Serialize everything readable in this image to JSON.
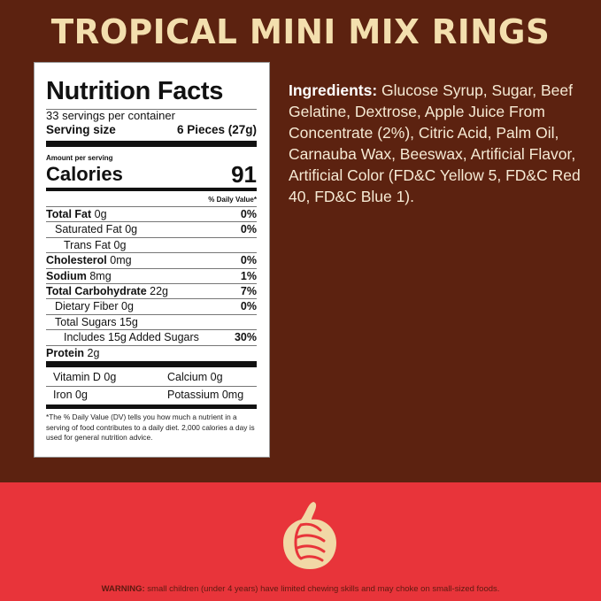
{
  "title": "TROPICAL MINI MIX RINGS",
  "nutrition": {
    "heading": "Nutrition Facts",
    "servings": "33 servings per container",
    "serving_size_label": "Serving size",
    "serving_size_value": "6 Pieces (27g)",
    "amount_per_serving": "Amount per serving",
    "calories_label": "Calories",
    "calories_value": "91",
    "dv_header": "% Daily Value*",
    "rows": [
      {
        "label": "Total Fat",
        "value": "0g",
        "dv": "0%"
      },
      {
        "label": "Saturated Fat",
        "value": "0g",
        "dv": "0%"
      },
      {
        "label": "Trans Fat",
        "value": "0g",
        "dv": ""
      },
      {
        "label": "Cholesterol",
        "value": "0mg",
        "dv": "0%"
      },
      {
        "label": "Sodium",
        "value": "8mg",
        "dv": "1%"
      },
      {
        "label": "Total Carbohydrate",
        "value": "22g",
        "dv": "7%"
      },
      {
        "label": "Dietary Fiber",
        "value": "0g",
        "dv": "0%"
      },
      {
        "label": "Total Sugars",
        "value": "15g",
        "dv": ""
      },
      {
        "label": "Includes 15g Added Sugars",
        "value": "",
        "dv": "30%"
      },
      {
        "label": "Protein",
        "value": "2g",
        "dv": ""
      }
    ],
    "vitamins": [
      [
        "Vitamin D 0g",
        "Calcium 0g"
      ],
      [
        "Iron 0g",
        "Potassium 0mg"
      ]
    ],
    "footnote": "*The % Daily Value (DV) tells you how much a nutrient in a serving of food contributes to a daily diet. 2,000 calories a day is used for general nutrition advice."
  },
  "ingredients": {
    "label": "Ingredients:",
    "text": "Glucose Syrup, Sugar, Beef Gelatine, Dextrose, Apple Juice From Concentrate (2%), Citric Acid, Palm Oil, Carnauba Wax, Beeswax, Artificial Flavor, Artificial Color (FD&C Yellow 5, FD&C Red 40, FD&C Blue 1)."
  },
  "warning": {
    "label": "WARNING:",
    "text": "small children (under 4 years) have limited chewing skills and may choke on small-sized foods."
  },
  "colors": {
    "background": "#5c2210",
    "title": "#f3dfae",
    "band": "#e8343a"
  }
}
